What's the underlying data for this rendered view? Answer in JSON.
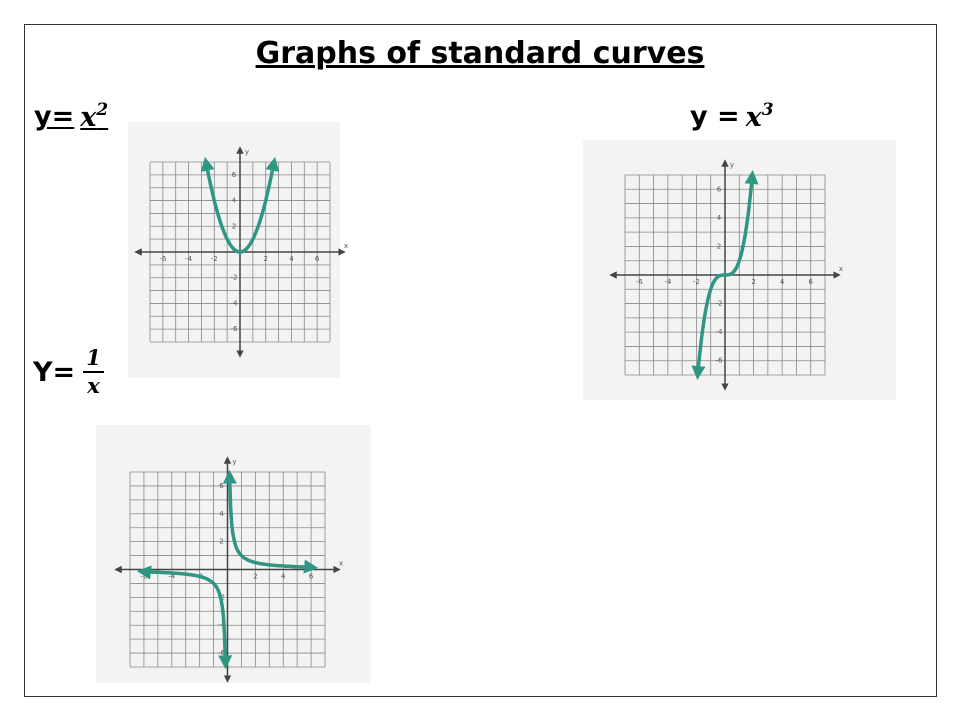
{
  "title": "Graphs of standard curves",
  "graphs": [
    {
      "label": {
        "lhs": "y=",
        "base": "x",
        "exponent": "2"
      },
      "x_axis": "x",
      "y_axis": "y",
      "x_ticks": [
        "-6",
        "-4",
        "-2",
        "2",
        "4",
        "6"
      ],
      "y_ticks": [
        "6",
        "4",
        "2",
        "-2",
        "-4",
        "-6"
      ]
    },
    {
      "label": {
        "lhs": "y =",
        "base": "x",
        "exponent": "3"
      },
      "x_axis": "x",
      "y_axis": "y",
      "x_ticks": [
        "-6",
        "-4",
        "-2",
        "2",
        "4",
        "6"
      ],
      "y_ticks": [
        "6",
        "4",
        "2",
        "-2",
        "-4",
        "-6"
      ]
    },
    {
      "label": {
        "lhs": "Y=",
        "numerator": "1",
        "denominator": "x"
      },
      "x_axis": "x",
      "y_axis": "y",
      "x_ticks": [
        "-6",
        "-4",
        "-2",
        "2",
        "4",
        "6"
      ],
      "y_ticks": [
        "6",
        "4",
        "2",
        "-2",
        "-4",
        "-6"
      ]
    }
  ]
}
